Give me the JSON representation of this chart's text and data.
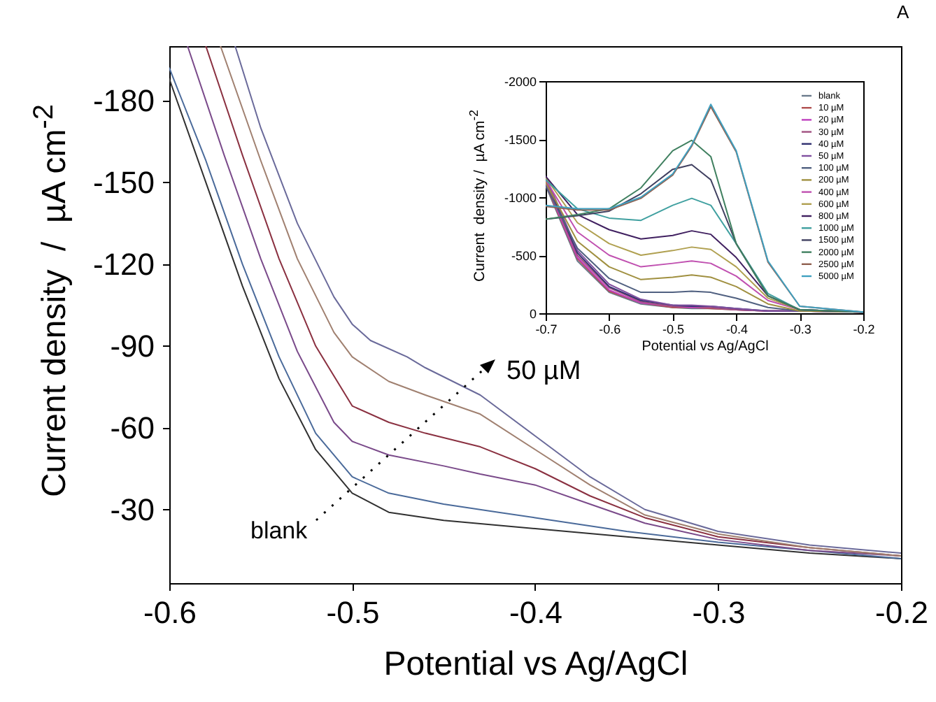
{
  "chart_data": [
    {
      "type": "line",
      "xlabel": "Potential vs Ag/AgCl",
      "ylabel": "Current density  /  µA cm$^{-2}$",
      "xlim": [
        -0.6,
        -0.2
      ],
      "ylim": [
        -3,
        -200
      ],
      "xticks": [
        -0.6,
        -0.5,
        -0.4,
        -0.3,
        -0.2
      ],
      "yticks": [
        -180,
        -150,
        -120,
        -90,
        -60,
        -30
      ],
      "annotations": [
        "50 µM",
        "blank",
        "A"
      ],
      "series": [
        {
          "color": "#303030",
          "x": [
            -0.6,
            -0.58,
            -0.56,
            -0.54,
            -0.52,
            -0.5,
            -0.48,
            -0.45,
            -0.4,
            -0.35,
            -0.3,
            -0.25,
            -0.2
          ],
          "values": [
            -188,
            -150,
            -112,
            -78,
            -52,
            -36,
            -29,
            -26,
            -23,
            -20,
            -17,
            -14,
            -12
          ]
        },
        {
          "color": "#4a6a9a",
          "x": [
            -0.6,
            -0.58,
            -0.56,
            -0.54,
            -0.52,
            -0.5,
            -0.48,
            -0.45,
            -0.42,
            -0.4,
            -0.35,
            -0.3,
            -0.25,
            -0.2
          ],
          "values": [
            -192,
            -158,
            -120,
            -86,
            -58,
            -42,
            -36,
            -32,
            -29,
            -27,
            -22,
            -18,
            -15,
            -12
          ]
        },
        {
          "color": "#7a4a8a",
          "x": [
            -0.59,
            -0.57,
            -0.55,
            -0.53,
            -0.51,
            -0.5,
            -0.48,
            -0.45,
            -0.43,
            -0.4,
            -0.37,
            -0.34,
            -0.3,
            -0.25,
            -0.2
          ],
          "values": [
            -200,
            -160,
            -122,
            -88,
            -62,
            -55,
            -50,
            -46,
            -43,
            -39,
            -32,
            -25,
            -19,
            -15,
            -13
          ]
        },
        {
          "color": "#8a3040",
          "x": [
            -0.58,
            -0.56,
            -0.54,
            -0.52,
            -0.5,
            -0.48,
            -0.46,
            -0.43,
            -0.4,
            -0.37,
            -0.34,
            -0.3,
            -0.25,
            -0.2
          ],
          "values": [
            -200,
            -160,
            -122,
            -90,
            -68,
            -62,
            -58,
            -53,
            -45,
            -35,
            -27,
            -20,
            -16,
            -13
          ]
        },
        {
          "color": "#a08070",
          "x": [
            -0.572,
            -0.55,
            -0.53,
            -0.51,
            -0.5,
            -0.48,
            -0.46,
            -0.43,
            -0.4,
            -0.37,
            -0.34,
            -0.3,
            -0.25,
            -0.2
          ],
          "values": [
            -200,
            -158,
            -122,
            -95,
            -86,
            -77,
            -72,
            -65,
            -52,
            -39,
            -28,
            -21,
            -16,
            -13
          ]
        },
        {
          "color": "#6a6a9a",
          "x": [
            -0.564,
            -0.55,
            -0.53,
            -0.51,
            -0.5,
            -0.49,
            -0.47,
            -0.46,
            -0.43,
            -0.4,
            -0.37,
            -0.34,
            -0.3,
            -0.25,
            -0.2
          ],
          "values": [
            -200,
            -170,
            -135,
            -108,
            -98,
            -92,
            -86,
            -82,
            -72,
            -57,
            -42,
            -30,
            -22,
            -17,
            -14
          ]
        }
      ]
    },
    {
      "type": "line",
      "xlabel": "Potential vs Ag/AgCl",
      "ylabel": "Current  density /  µA cm$^{-2}$",
      "xlim": [
        -0.7,
        -0.2
      ],
      "ylim": [
        0,
        -2000
      ],
      "xticks": [
        -0.7,
        -0.6,
        -0.5,
        -0.4,
        -0.3,
        -0.2
      ],
      "yticks": [
        0,
        -500,
        -1000,
        -1500,
        -2000
      ],
      "legend": "top right",
      "x": [
        -0.7,
        -0.65,
        -0.6,
        -0.55,
        -0.5,
        -0.47,
        -0.44,
        -0.4,
        -0.35,
        -0.3,
        -0.2
      ],
      "series": [
        {
          "name": "blank",
          "color": "#6b7b8c",
          "values": [
            -1100,
            -450,
            -180,
            -80,
            -50,
            -40,
            -40,
            -30,
            -20,
            -20,
            -10
          ]
        },
        {
          "name": "10 µM",
          "color": "#b05050",
          "values": [
            -1110,
            -470,
            -190,
            -90,
            -50,
            -50,
            -40,
            -30,
            -20,
            -20,
            -10
          ]
        },
        {
          "name": "20 µM",
          "color": "#c040c0",
          "values": [
            -1120,
            -480,
            -200,
            -90,
            -60,
            -50,
            -50,
            -30,
            -20,
            -20,
            -10
          ]
        },
        {
          "name": "30 µM",
          "color": "#a05080",
          "values": [
            -1140,
            -500,
            -220,
            -100,
            -60,
            -60,
            -50,
            -30,
            -20,
            -20,
            -10
          ]
        },
        {
          "name": "40 µM",
          "color": "#303070",
          "values": [
            -1160,
            -520,
            -230,
            -110,
            -70,
            -60,
            -60,
            -40,
            -20,
            -20,
            -10
          ]
        },
        {
          "name": "50 µM",
          "color": "#8050a0",
          "values": [
            -1180,
            -540,
            -250,
            -120,
            -70,
            -70,
            -60,
            -40,
            -20,
            -20,
            -10
          ]
        },
        {
          "name": "100 µM",
          "color": "#506080",
          "values": [
            -1100,
            -560,
            -300,
            -180,
            -180,
            -190,
            -180,
            -130,
            -50,
            -20,
            -10
          ]
        },
        {
          "name": "200 µM",
          "color": "#a09040",
          "values": [
            -1130,
            -620,
            -400,
            -290,
            -310,
            -330,
            -310,
            -230,
            -80,
            -20,
            -10
          ]
        },
        {
          "name": "400 µM",
          "color": "#c050b0",
          "values": [
            -1150,
            -700,
            -500,
            -400,
            -430,
            -450,
            -430,
            -320,
            -110,
            -30,
            -10
          ]
        },
        {
          "name": "600 µM",
          "color": "#b0a050",
          "values": [
            -1170,
            -780,
            -600,
            -500,
            -540,
            -570,
            -550,
            -400,
            -130,
            -30,
            -10
          ]
        },
        {
          "name": "800 µM",
          "color": "#402060",
          "values": [
            -1180,
            -850,
            -720,
            -640,
            -670,
            -710,
            -680,
            -480,
            -150,
            -30,
            -10
          ]
        },
        {
          "name": "1000 µM",
          "color": "#40a0a0",
          "values": [
            -1150,
            -900,
            -820,
            -800,
            -930,
            -990,
            -930,
            -600,
            -170,
            -30,
            -10
          ]
        },
        {
          "name": "1500 µM",
          "color": "#404060",
          "values": [
            -810,
            -840,
            -880,
            -1030,
            -1240,
            -1280,
            -1150,
            -600,
            -150,
            -30,
            -10
          ]
        },
        {
          "name": "2000 µM",
          "color": "#408060",
          "values": [
            -810,
            -850,
            -900,
            -1080,
            -1400,
            -1490,
            -1350,
            -600,
            -150,
            -30,
            -10
          ]
        },
        {
          "name": "2500 µM",
          "color": "#906050",
          "values": [
            -920,
            -890,
            -890,
            -990,
            -1190,
            -1440,
            -1780,
            -1390,
            -440,
            -60,
            -10
          ]
        },
        {
          "name": "5000 µM",
          "color": "#40a0c0",
          "values": [
            -930,
            -900,
            -900,
            -1000,
            -1200,
            -1450,
            -1800,
            -1400,
            -450,
            -60,
            -10
          ]
        }
      ]
    }
  ]
}
